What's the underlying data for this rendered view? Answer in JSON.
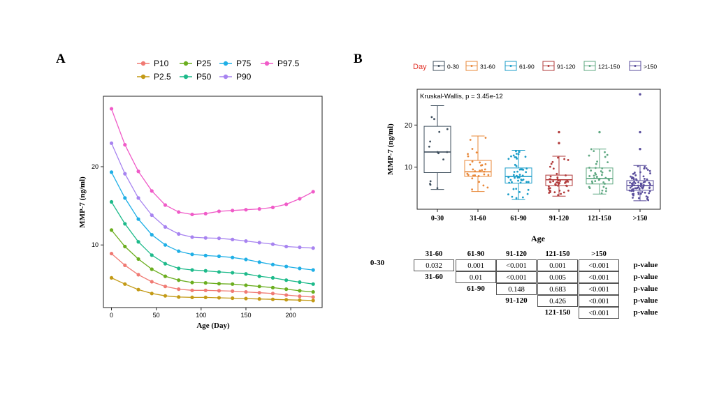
{
  "panel_a": {
    "label": "A",
    "legend": [
      {
        "name": "P10",
        "color": "#F07A73"
      },
      {
        "name": "P25",
        "color": "#6BAE1F"
      },
      {
        "name": "P75",
        "color": "#1FAFE6"
      },
      {
        "name": "P97.5",
        "color": "#F05BC8"
      },
      {
        "name": "P2.5",
        "color": "#C39A16"
      },
      {
        "name": "P50",
        "color": "#1DBA8A"
      },
      {
        "name": "P90",
        "color": "#A783F0"
      }
    ],
    "xlabel": "Age (Day)",
    "ylabel": "MMP-7 (ng/ml)",
    "x_ticks": [
      "0",
      "50",
      "100",
      "150",
      "200"
    ],
    "y_ticks": [
      "10",
      "20"
    ]
  },
  "panel_b": {
    "label": "B",
    "legend_title": "Day",
    "legend": [
      {
        "name": "0-30",
        "color": "#3F4F5E"
      },
      {
        "name": "31-60",
        "color": "#E8883A"
      },
      {
        "name": "61-90",
        "color": "#1B9DC8"
      },
      {
        "name": "91-120",
        "color": "#B23B3B"
      },
      {
        "name": "121-150",
        "color": "#5FA882"
      },
      {
        "name": ">150",
        "color": "#5A4E9C"
      }
    ],
    "annotation": "Kruskal-Wallis, p = 3.45e-12",
    "xlabel": "Age",
    "ylabel": "MMP-7 (ng/ml)",
    "x_ticks": [
      "0-30",
      "31-60",
      "61-90",
      "91-120",
      "121-150",
      ">150"
    ],
    "y_ticks": [
      "10",
      "20"
    ]
  },
  "chart_data": [
    {
      "type": "line",
      "title": "",
      "xlabel": "Age (Day)",
      "ylabel": "MMP-7 (ng/ml)",
      "xlim": [
        -9,
        235
      ],
      "ylim": [
        2,
        29
      ],
      "x": [
        0,
        15,
        30,
        45,
        60,
        75,
        90,
        105,
        120,
        135,
        150,
        165,
        180,
        195,
        210,
        225
      ],
      "series": [
        {
          "name": "P2.5",
          "values": [
            5.8,
            5.0,
            4.3,
            3.8,
            3.5,
            3.35,
            3.3,
            3.3,
            3.25,
            3.2,
            3.15,
            3.1,
            3.05,
            3.0,
            2.95,
            2.9
          ]
        },
        {
          "name": "P10",
          "values": [
            8.9,
            7.4,
            6.2,
            5.3,
            4.7,
            4.35,
            4.2,
            4.2,
            4.15,
            4.1,
            4.0,
            3.9,
            3.8,
            3.6,
            3.45,
            3.35
          ]
        },
        {
          "name": "P25",
          "values": [
            11.9,
            9.8,
            8.2,
            6.9,
            6.0,
            5.5,
            5.2,
            5.15,
            5.05,
            5.0,
            4.85,
            4.7,
            4.55,
            4.35,
            4.15,
            4.0
          ]
        },
        {
          "name": "P50",
          "values": [
            15.5,
            12.7,
            10.4,
            8.7,
            7.6,
            7.0,
            6.8,
            6.7,
            6.55,
            6.45,
            6.3,
            6.0,
            5.8,
            5.5,
            5.25,
            5.0
          ]
        },
        {
          "name": "P75",
          "values": [
            19.3,
            16.0,
            13.3,
            11.3,
            10.0,
            9.2,
            8.8,
            8.65,
            8.55,
            8.4,
            8.15,
            7.8,
            7.5,
            7.25,
            7.0,
            6.8
          ]
        },
        {
          "name": "P90",
          "values": [
            23.0,
            19.1,
            16.0,
            13.8,
            12.3,
            11.4,
            11.0,
            10.9,
            10.85,
            10.7,
            10.5,
            10.3,
            10.1,
            9.8,
            9.7,
            9.6
          ]
        },
        {
          "name": "P97.5",
          "values": [
            27.4,
            22.8,
            19.4,
            16.9,
            15.1,
            14.2,
            13.9,
            14.0,
            14.3,
            14.4,
            14.5,
            14.6,
            14.8,
            15.2,
            15.9,
            16.8
          ]
        }
      ],
      "grid": false,
      "legend_position": "top"
    },
    {
      "type": "box",
      "title": "",
      "xlabel": "Age",
      "ylabel": "MMP-7 (ng/ml)",
      "ylim": [
        0,
        28.5
      ],
      "legend_title": "Day",
      "legend_position": "top",
      "categories": [
        "0-30",
        "31-60",
        "61-90",
        "91-120",
        "121-150",
        ">150"
      ],
      "boxes": [
        {
          "min": 4.7,
          "q1": 8.7,
          "median": 13.6,
          "q3": 19.7,
          "max": 24.6
        },
        {
          "min": 4.2,
          "q1": 7.8,
          "median": 8.9,
          "q3": 11.6,
          "max": 17.4
        },
        {
          "min": 2.3,
          "q1": 6.2,
          "median": 7.8,
          "q3": 9.8,
          "max": 14.0
        },
        {
          "min": 3.1,
          "q1": 5.6,
          "median": 7.0,
          "q3": 8.1,
          "max": 12.6
        },
        {
          "min": 3.6,
          "q1": 6.0,
          "median": 7.3,
          "q3": 9.8,
          "max": 14.3
        },
        {
          "min": 2.0,
          "q1": 4.5,
          "median": 5.6,
          "q3": 6.8,
          "max": 10.4
        }
      ],
      "outliers": [
        [],
        [],
        [],
        [
          15.7,
          18.3
        ],
        [
          18.3
        ],
        [
          14.3,
          18.3,
          27.3
        ]
      ],
      "annotation": "Kruskal-Wallis, p = 3.45e-12"
    },
    {
      "type": "table",
      "title": "",
      "col_headers": [
        "31-60",
        "61-90",
        "91-120",
        "121-150",
        ">150"
      ],
      "rows": [
        {
          "label": "0-30",
          "values": [
            "0.032",
            "0.001",
            "<0.001",
            "0.001",
            "<0.001"
          ],
          "suffix": "p-value"
        },
        {
          "label": "31-60",
          "values": [
            "0.01",
            "<0.001",
            "0.005",
            "<0.001"
          ],
          "suffix": "p-value"
        },
        {
          "label": "61-90",
          "values": [
            "0.148",
            "0.683",
            "<0.001"
          ],
          "suffix": "p-value"
        },
        {
          "label": "91-120",
          "values": [
            "0.426",
            "<0.001"
          ],
          "suffix": "p-value"
        },
        {
          "label": "121-150",
          "values": [
            "<0.001"
          ],
          "suffix": "p-value"
        }
      ]
    }
  ]
}
